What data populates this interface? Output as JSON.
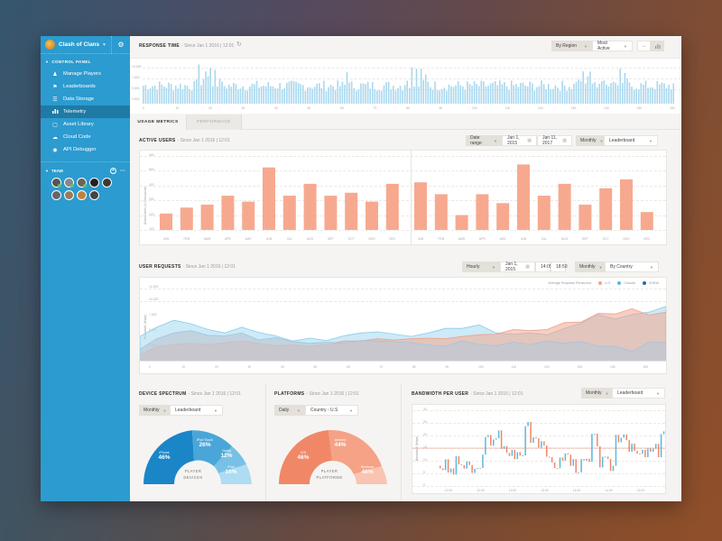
{
  "app": {
    "title": "Clash of Clans"
  },
  "sidebar": {
    "section_label": "CONTROL PANEL",
    "items": [
      {
        "label": "Manage Players",
        "icon": "users-icon"
      },
      {
        "label": "Leaderboards",
        "icon": "flag-icon"
      },
      {
        "label": "Data Storage",
        "icon": "database-icon"
      },
      {
        "label": "Telemetry",
        "icon": "bar-chart-icon",
        "active": true
      },
      {
        "label": "Asset Library",
        "icon": "file-icon"
      },
      {
        "label": "Cloud Code",
        "icon": "cloud-icon"
      },
      {
        "label": "API Debugger",
        "icon": "bug-icon"
      }
    ],
    "team_label": "TEAM",
    "team_members": 9
  },
  "response_time": {
    "title": "RESPONSE TIME",
    "subtitle": "- Since Jan 1 2016 | 12:01",
    "region_dropdown": "By Region",
    "activity_dropdown": "Most Active",
    "y_ticks": [
      "10,000",
      "7,500",
      "5,000",
      "2,500"
    ],
    "x_ticks": [
      "0",
      "10",
      "20",
      "30",
      "40",
      "50",
      "60",
      "70",
      "80",
      "90",
      "100",
      "110",
      "120",
      "130",
      "140",
      "150",
      "160"
    ]
  },
  "tabs": [
    {
      "label": "USAGE METRICS",
      "active": true
    },
    {
      "label": "PERFORMACE",
      "active": false
    }
  ],
  "active_users": {
    "title": "ACTIVE USERS",
    "subtitle": "- Since Jan 1 2016 | 12:01",
    "range_dropdown": "Date range",
    "date_from": "Jan 1, 2015",
    "date_to": "Jan 11, 2017",
    "period_dropdown": "Monthly",
    "board_dropdown": "Leaderboard",
    "y_title": "Active Users (in Thousands)",
    "y_ticks": [
      "600",
      "500",
      "400",
      "300",
      "200",
      "100"
    ]
  },
  "user_requests": {
    "title": "USER REQUESTS",
    "subtitle": "- Since Jan 1 2016 | 12:01",
    "interval_dropdown": "Hourly",
    "date": "Jan 1, 2015",
    "time_from": "14:05",
    "time_to": "18:50",
    "period_dropdown": "Monthly",
    "group_dropdown": "By Country",
    "legend_title": "Average Requests Persecond",
    "legend": [
      {
        "label": "U.S",
        "color": "#f4a58e"
      },
      {
        "label": "Canada",
        "color": "#5bb8e0"
      },
      {
        "label": "CHINA",
        "color": "#1f6fa8"
      }
    ],
    "y_title": "Bandwidth (Mbps)",
    "y_ticks": [
      "12,500",
      "10,000",
      "7,500",
      "5,000",
      "2,500"
    ],
    "x_ticks": [
      "0",
      "10",
      "20",
      "30",
      "40",
      "50",
      "60",
      "70",
      "80",
      "90",
      "100",
      "110",
      "120",
      "130",
      "140",
      "150"
    ]
  },
  "device_spectrum": {
    "title": "DEVICE SPECTRUM",
    "subtitle": "- Since Jan 1 2016 | 12:01",
    "period_dropdown": "Monthly",
    "board_dropdown": "Leaderboard",
    "center_line1": "PLAYER",
    "center_line2": "DEVICES",
    "segments": [
      {
        "label": "iPhone",
        "value": "46%"
      },
      {
        "label": "iPod Touch",
        "value": "26%"
      },
      {
        "label": "Nokia",
        "value": "12%"
      },
      {
        "label": "iPad",
        "value": "16%"
      }
    ]
  },
  "platforms": {
    "title": "PLATFORMS",
    "subtitle": "- Since Jan 1 2016 | 12:01",
    "period_dropdown": "Daily",
    "country_dropdown": "Country - U.S",
    "center_line1": "PLAYER",
    "center_line2": "PLATFORMS",
    "segments": [
      {
        "label": "iOS",
        "value": "46%"
      },
      {
        "label": "Android",
        "value": "44%"
      },
      {
        "label": "Windows",
        "value": "46%"
      }
    ]
  },
  "bandwidth": {
    "title": "BANDWIDTH PER USER",
    "subtitle": "- Since Jan 1 2016 | 12:01",
    "period_dropdown": "Monthly",
    "board_dropdown": "Leaderboard",
    "y_title": "Bandwidth (Mbps)",
    "y_ticks": [
      "30",
      "25",
      "20",
      "15",
      "10",
      "5",
      "0"
    ],
    "x_ticks": [
      "12:00",
      "12:30",
      "13:00",
      "13:30",
      "14:00",
      "14:30",
      "15:00",
      "15:30"
    ]
  },
  "chart_data": [
    {
      "type": "bar",
      "title": "Active Users (2016)",
      "ylabel": "Active Users (in Thousands)",
      "categories": [
        "JAN",
        "FEB",
        "MAR",
        "APR",
        "MAY",
        "JUN",
        "JUL",
        "AUG",
        "SEP",
        "OCT",
        "NOV",
        "DEC"
      ],
      "values": [
        210,
        250,
        270,
        330,
        290,
        520,
        330,
        410,
        330,
        350,
        290,
        410
      ],
      "ylim": [
        100,
        600
      ]
    },
    {
      "type": "bar",
      "title": "Active Users (2017)",
      "categories": [
        "JAN",
        "FEB",
        "MAR",
        "APR",
        "MAY",
        "JUN",
        "JUL",
        "AUG",
        "SEP",
        "OCT",
        "NOV",
        "DEC"
      ],
      "values": [
        420,
        340,
        200,
        340,
        280,
        540,
        330,
        410,
        270,
        380,
        440,
        220
      ],
      "ylim": [
        100,
        600
      ]
    },
    {
      "type": "area",
      "title": "User Requests",
      "ylabel": "Bandwidth (Mbps)",
      "x": [
        0,
        5,
        10,
        15,
        20,
        25,
        30,
        35,
        40,
        45,
        50,
        55,
        60,
        65,
        70,
        75,
        80,
        85,
        90,
        95,
        100,
        105,
        110,
        115,
        120,
        125,
        130,
        135,
        140,
        145,
        150,
        155
      ],
      "series": [
        {
          "name": "U.S",
          "values": [
            1000,
            2400,
            2800,
            3000,
            2800,
            3100,
            3400,
            3000,
            2600,
            2700,
            2500,
            2800,
            3400,
            3400,
            3800,
            3600,
            3800,
            3900,
            3800,
            4200,
            4500,
            4600,
            5400,
            5200,
            5400,
            6600,
            6700,
            8200,
            8100,
            9000,
            7900,
            8400
          ]
        },
        {
          "name": "Canada",
          "values": [
            4200,
            5800,
            7000,
            6400,
            5400,
            4800,
            5800,
            4900,
            4300,
            3400,
            3900,
            3500,
            4300,
            4800,
            5000,
            4600,
            4200,
            4800,
            5600,
            5600,
            6200,
            4800,
            4600,
            4800,
            4500,
            5600,
            6500,
            8000,
            7200,
            8000,
            8400,
            9400
          ]
        },
        {
          "name": "CHINA",
          "values": [
            2000,
            3800,
            4800,
            5200,
            4400,
            4300,
            4800,
            3600,
            4000,
            3300,
            3000,
            3200,
            3000,
            3500,
            3400,
            3300,
            3100,
            2700,
            2500,
            3400,
            2800,
            2600,
            3200,
            2800,
            3400,
            3000,
            3300,
            2500,
            2500,
            1600,
            3200,
            3100
          ]
        }
      ],
      "ylim": [
        0,
        12500
      ]
    },
    {
      "type": "pie",
      "title": "Player Devices",
      "categories": [
        "iPhone",
        "iPod Touch",
        "Nokia",
        "iPad"
      ],
      "values": [
        46,
        26,
        12,
        16
      ]
    },
    {
      "type": "pie",
      "title": "Player Platforms",
      "categories": [
        "iOS",
        "Android",
        "Windows"
      ],
      "values": [
        46,
        44,
        46
      ]
    },
    {
      "type": "bar",
      "title": "Bandwidth per User",
      "ylabel": "Bandwidth (Mbps)",
      "ylim": [
        0,
        30
      ],
      "x_ticks": [
        "12:00",
        "12:30",
        "13:00",
        "13:30",
        "14:00",
        "14:30",
        "15:00",
        "15:30"
      ]
    }
  ]
}
